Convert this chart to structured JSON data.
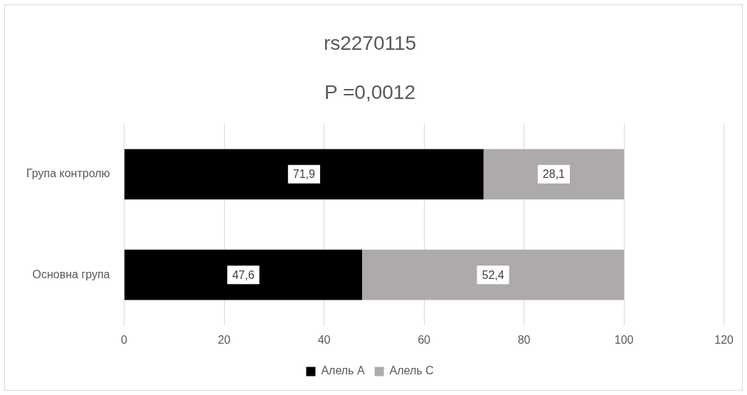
{
  "chart_data": {
    "type": "bar",
    "orientation": "horizontal",
    "stacked": true,
    "title": "rs2270115",
    "subtitle": "P =0,0012",
    "categories": [
      "Група контролю",
      "Основна група"
    ],
    "series": [
      {
        "name": "Алель А",
        "color": "#000000",
        "values": [
          71.9,
          47.6
        ],
        "value_labels": [
          "71,9",
          "47,6"
        ]
      },
      {
        "name": "Алель С",
        "color": "#aeaaaa",
        "values": [
          28.1,
          52.4
        ],
        "value_labels": [
          "28,1",
          "52,4"
        ]
      }
    ],
    "xlim": [
      0,
      120
    ],
    "xticks": [
      0,
      20,
      40,
      60,
      80,
      100,
      120
    ],
    "grid": "x",
    "legend": "bottom"
  }
}
